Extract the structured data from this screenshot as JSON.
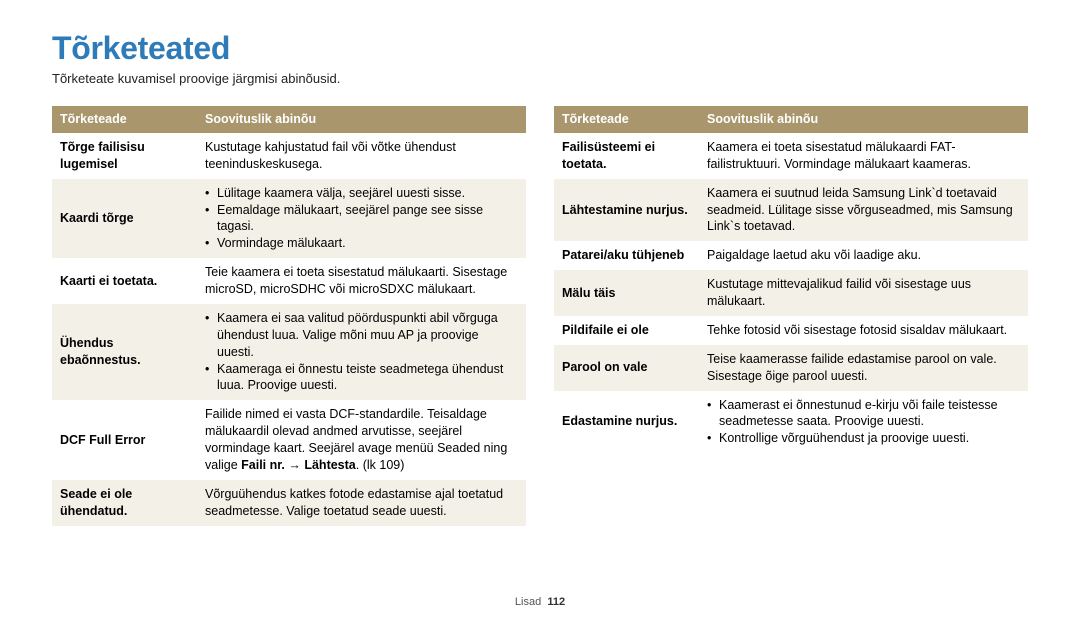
{
  "title": "Tõrketeated",
  "subtitle": "Tõrketeate kuvamisel proovige järgmisi abinõusid.",
  "header_col1": "Tõrketeade",
  "header_col2": "Soovituslik abinõu",
  "left": {
    "r0": {
      "label_l1": "Tõrge failisisu",
      "label_l2": "lugemisel",
      "body": "Kustutage kahjustatud fail või võtke ühendust teeninduskeskusega."
    },
    "r1": {
      "label": "Kaardi tõrge",
      "b1": "Lülitage kaamera välja, seejärel uuesti sisse.",
      "b2": "Eemaldage mälukaart, seejärel pange see sisse tagasi.",
      "b3": "Vormindage mälukaart."
    },
    "r2": {
      "label": "Kaarti ei toetata.",
      "body": "Teie kaamera ei toeta sisestatud mälukaarti. Sisestage microSD, microSDHC või microSDXC mälukaart."
    },
    "r3": {
      "label": "Ühendus ebaõnnestus.",
      "b1": "Kaamera ei saa valitud pöörduspunkti abil võrguga ühendust luua. Valige mõni muu AP ja proovige uuesti.",
      "b2": "Kaameraga ei õnnestu teiste seadmetega ühendust luua. Proovige uuesti."
    },
    "r4": {
      "label": "DCF Full Error",
      "body_pre": "Failide nimed ei vasta DCF-standardile. Teisaldage mälukaardil olevad andmed arvutisse, seejärel vormindage kaart. Seejärel avage menüü Seaded ning valige ",
      "body_bold": "Faili nr. → Lähtesta",
      "body_post": ". (lk 109)"
    },
    "r5": {
      "label_l1": "Seade ei ole",
      "label_l2": "ühendatud.",
      "body": "Võrguühendus katkes fotode edastamise ajal toetatud seadmetesse. Valige toetatud seade uuesti."
    }
  },
  "right": {
    "r0": {
      "label": "Failisüsteemi ei toetata.",
      "body": "Kaamera ei toeta sisestatud mälukaardi FAT-failistruktuuri. Vormindage mälukaart kaameras."
    },
    "r1": {
      "label": "Lähtestamine nurjus.",
      "body": "Kaamera ei suutnud leida Samsung Link`d toetavaid seadmeid. Lülitage sisse võrguseadmed, mis Samsung Link`s toetavad."
    },
    "r2": {
      "label": "Patarei/aku tühjeneb",
      "body": "Paigaldage laetud aku või laadige aku."
    },
    "r3": {
      "label": "Mälu täis",
      "body": "Kustutage mittevajalikud failid või sisestage uus mälukaart."
    },
    "r4": {
      "label": "Pildifaile ei ole",
      "body": "Tehke fotosid või sisestage fotosid sisaldav mälukaart."
    },
    "r5": {
      "label": "Parool on vale",
      "body": "Teise kaamerasse failide edastamise parool on vale. Sisestage õige parool uuesti."
    },
    "r6": {
      "label": "Edastamine nurjus.",
      "b1": "Kaamerast ei õnnestunud e-kirju või faile teistesse seadmetesse saata. Proovige uuesti.",
      "b2": "Kontrollige võrguühendust ja proovige uuesti."
    }
  },
  "footer_label": "Lisad",
  "footer_page": "112"
}
